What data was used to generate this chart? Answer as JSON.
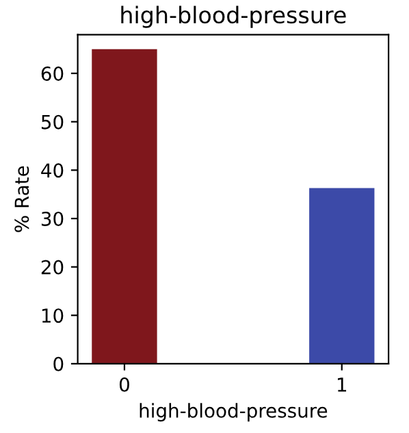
{
  "chart_data": {
    "type": "bar",
    "title": "high-blood-pressure",
    "xlabel": "high-blood-pressure",
    "ylabel": "% Rate",
    "categories": [
      "0",
      "1"
    ],
    "values": [
      65,
      36.3
    ],
    "colors": [
      "#7f171c",
      "#3c4aa8"
    ],
    "ylim": [
      0,
      68
    ],
    "yticks": [
      0,
      10,
      20,
      30,
      40,
      50,
      60
    ],
    "grid": false,
    "legend": false
  }
}
